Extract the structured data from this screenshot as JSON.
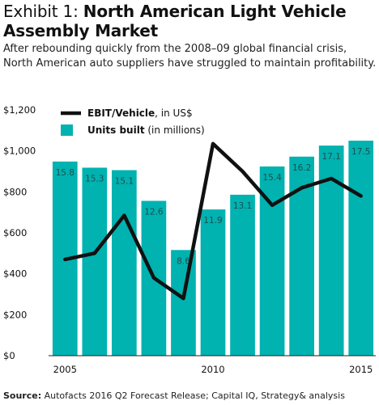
{
  "header": {
    "title_prefix": "Exhibit 1:",
    "title_main": "North American Light Vehicle Assembly Market",
    "subtitle": "After rebounding quickly from the 2008–09 global financial crisis, North American auto suppliers have struggled to maintain profitability."
  },
  "footer": {
    "source_label": "Source:",
    "source_text": "Autofacts 2016 Q2 Forecast Release; Capital IQ, Strategy& analysis"
  },
  "chart_data": {
    "type": "bar",
    "x": [
      2005,
      2006,
      2007,
      2008,
      2009,
      2010,
      2011,
      2012,
      2013,
      2014,
      2015
    ],
    "x_tick_labels": [
      "2005",
      "2010",
      "2015"
    ],
    "y_tick_labels": [
      "$0",
      "$200",
      "$400",
      "$600",
      "$800",
      "$1,000",
      "$1,200"
    ],
    "y_ticks": [
      0,
      200,
      400,
      600,
      800,
      1000,
      1200
    ],
    "ylim": [
      0,
      1200
    ],
    "bar_color": "#00b2b0",
    "line_color": "#111111",
    "legend": [
      {
        "key": "line",
        "bold": "EBIT/Vehicle",
        "rest": ", in US$"
      },
      {
        "key": "bar",
        "bold": "Units built",
        "rest": " (in millions)"
      }
    ],
    "series": [
      {
        "name": "Units built (in millions)",
        "type": "bar",
        "values": [
          15.8,
          15.3,
          15.1,
          12.6,
          8.6,
          11.9,
          13.1,
          15.4,
          16.2,
          17.1,
          17.5
        ],
        "labels": [
          "15.8",
          "15.3",
          "15.1",
          "12.6",
          "8.6",
          "11.9",
          "13.1",
          "15.4",
          "16.2",
          "17.1",
          "17.5"
        ],
        "scale_per_unit": 60
      },
      {
        "name": "EBIT/Vehicle, in US$",
        "type": "line",
        "values": [
          470,
          500,
          685,
          380,
          280,
          1035,
          900,
          735,
          820,
          865,
          780
        ]
      }
    ]
  }
}
